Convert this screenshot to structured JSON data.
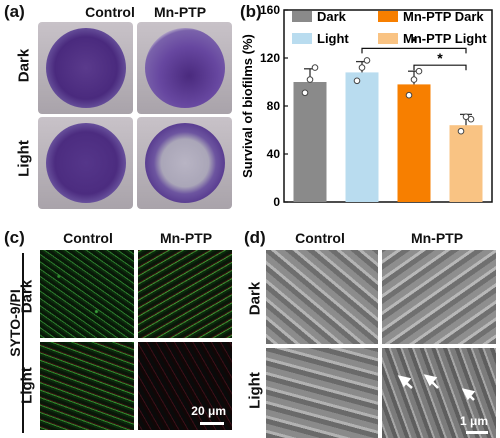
{
  "panels": {
    "a": {
      "letter": "(a)",
      "col_headers": [
        "Control",
        "Mn-PTP"
      ],
      "row_labels": [
        "Dark",
        "Light"
      ]
    },
    "b": {
      "letter": "(b)"
    },
    "c": {
      "letter": "(c)",
      "col_headers": [
        "Control",
        "Mn-PTP"
      ],
      "row_labels": [
        "Dark",
        "Light"
      ],
      "stain_label": "SYTO-9/PI",
      "scale_bar": "20 μm"
    },
    "d": {
      "letter": "(d)",
      "col_headers": [
        "Control",
        "Mn-PTP"
      ],
      "row_labels": [
        "Dark",
        "Light"
      ],
      "scale_bar": "1 μm"
    }
  },
  "chart_data": {
    "type": "bar",
    "categories": [
      "Dark",
      "Light",
      "Mn-PTP Dark",
      "Mn-PTP Light"
    ],
    "values": [
      100,
      108,
      98,
      64
    ],
    "errors": [
      11,
      9,
      11,
      9
    ],
    "points": [
      [
        91,
        112,
        102
      ],
      [
        101,
        118,
        112
      ],
      [
        89,
        109,
        102
      ],
      [
        59,
        69,
        71
      ]
    ],
    "colors": [
      "#8a8a8a",
      "#b9dcef",
      "#f77f00",
      "#f9c383"
    ],
    "legend": [
      "Dark",
      "Light",
      "Mn-PTP Dark",
      "Mn-PTP Light"
    ],
    "legend_placement": "top",
    "ylabel": "Survival of biofilms (%)",
    "ylim": [
      0,
      160
    ],
    "yticks": [
      "0",
      "40",
      "80",
      "120",
      "160"
    ],
    "significance": [
      {
        "from": 1,
        "to": 3,
        "label": "*"
      },
      {
        "from": 2,
        "to": 3,
        "label": "*"
      }
    ]
  }
}
